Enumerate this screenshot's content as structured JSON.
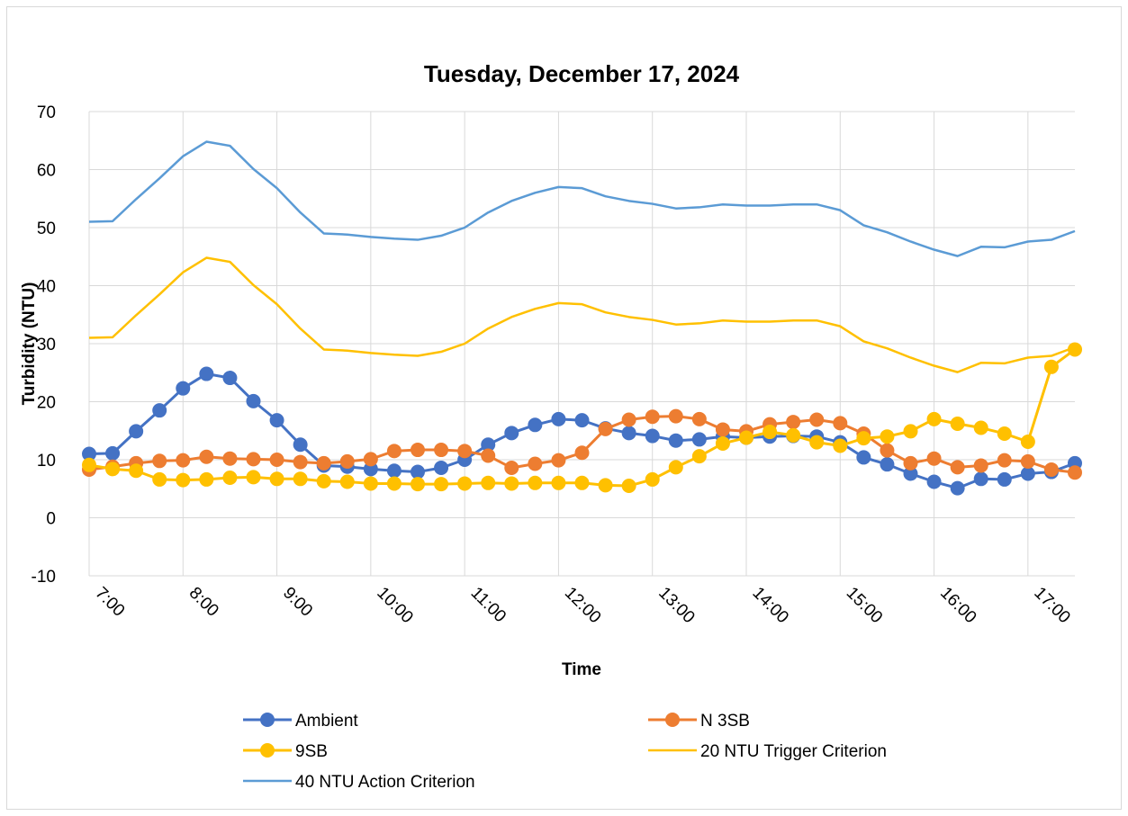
{
  "chart_data": {
    "type": "line",
    "title": "Tuesday, December 17, 2024",
    "xlabel": "Time",
    "ylabel": "Turbidity (NTU)",
    "ylim": [
      -10,
      70
    ],
    "yticks": [
      "-10",
      "0",
      "10",
      "20",
      "30",
      "40",
      "50",
      "60",
      "70"
    ],
    "xticks": [
      "7:00",
      "8:00",
      "9:00",
      "10:00",
      "11:00",
      "12:00",
      "13:00",
      "14:00",
      "15:00",
      "16:00",
      "17:00"
    ],
    "grid": true,
    "legend_position": "bottom",
    "x": [
      "7:00",
      "7:15",
      "7:30",
      "7:45",
      "8:00",
      "8:15",
      "8:30",
      "8:45",
      "9:00",
      "9:15",
      "9:30",
      "9:45",
      "10:00",
      "10:15",
      "10:30",
      "10:45",
      "11:00",
      "11:15",
      "11:30",
      "11:45",
      "12:00",
      "12:15",
      "12:30",
      "12:45",
      "13:00",
      "13:15",
      "13:30",
      "13:45",
      "14:00",
      "14:15",
      "14:30",
      "14:45",
      "15:00",
      "15:15",
      "15:30",
      "15:45",
      "16:00",
      "16:15",
      "16:30",
      "16:45",
      "17:00",
      "17:15",
      "17:30"
    ],
    "series": [
      {
        "name": "Ambient",
        "color": "#4472c4",
        "marker": true,
        "values": [
          11,
          11.1,
          14.9,
          18.5,
          22.3,
          24.8,
          24.1,
          20.1,
          16.8,
          12.6,
          9,
          8.8,
          8.4,
          8.1,
          7.9,
          8.6,
          10,
          12.6,
          14.6,
          16,
          17,
          16.8,
          15.4,
          14.6,
          14.1,
          13.3,
          13.5,
          14,
          13.8,
          14,
          14.1,
          14,
          13,
          10.4,
          9.2,
          7.6,
          6.2,
          5.1,
          6.7,
          6.6,
          7.6,
          7.9,
          9.4
        ]
      },
      {
        "name": "N 3SB",
        "color": "#ed7d31",
        "marker": true,
        "values": [
          8.3,
          8.8,
          9.4,
          9.8,
          9.9,
          10.5,
          10.2,
          10.1,
          10,
          9.6,
          9.4,
          9.7,
          10.1,
          11.5,
          11.7,
          11.7,
          11.5,
          10.7,
          8.6,
          9.3,
          9.9,
          11.2,
          15.3,
          16.9,
          17.4,
          17.5,
          17,
          15.2,
          14.9,
          16.1,
          16.5,
          16.9,
          16.3,
          14.5,
          11.6,
          9.4,
          10.2,
          8.7,
          9,
          9.9,
          9.7,
          8.3,
          7.8
        ]
      },
      {
        "name": "9SB",
        "color": "#ffc000",
        "marker": true,
        "values": [
          9.1,
          8.4,
          8.1,
          6.6,
          6.5,
          6.6,
          6.9,
          7,
          6.7,
          6.7,
          6.3,
          6.2,
          5.9,
          5.9,
          5.8,
          5.8,
          5.9,
          6,
          5.9,
          6,
          6,
          6,
          5.6,
          5.5,
          6.6,
          8.7,
          10.6,
          12.8,
          13.8,
          14.8,
          14.2,
          13,
          12.4,
          13.7,
          14,
          14.9,
          17,
          16.2,
          15.5,
          14.5,
          13.1,
          26,
          29
        ]
      },
      {
        "name": "20 NTU Trigger Criterion",
        "color": "#ffc000",
        "marker": false,
        "values": [
          31,
          31.1,
          34.9,
          38.5,
          42.3,
          44.8,
          44.1,
          40.1,
          36.8,
          32.6,
          29,
          28.8,
          28.4,
          28.1,
          27.9,
          28.6,
          30,
          32.6,
          34.6,
          36,
          37,
          36.8,
          35.4,
          34.6,
          34.1,
          33.3,
          33.5,
          34,
          33.8,
          33.8,
          34,
          34,
          33,
          30.4,
          29.2,
          27.6,
          26.2,
          25.1,
          26.7,
          26.6,
          27.6,
          27.9,
          29.4
        ]
      },
      {
        "name": "40 NTU Action Criterion",
        "color": "#5b9bd5",
        "marker": false,
        "values": [
          51,
          51.1,
          54.9,
          58.5,
          62.3,
          64.8,
          64.1,
          60.1,
          56.8,
          52.6,
          49,
          48.8,
          48.4,
          48.1,
          47.9,
          48.6,
          50,
          52.6,
          54.6,
          56,
          57,
          56.8,
          55.4,
          54.6,
          54.1,
          53.3,
          53.5,
          54,
          53.8,
          53.8,
          54,
          54,
          53,
          50.4,
          49.2,
          47.6,
          46.2,
          45.1,
          46.7,
          46.6,
          47.6,
          47.9,
          49.4
        ]
      }
    ]
  }
}
